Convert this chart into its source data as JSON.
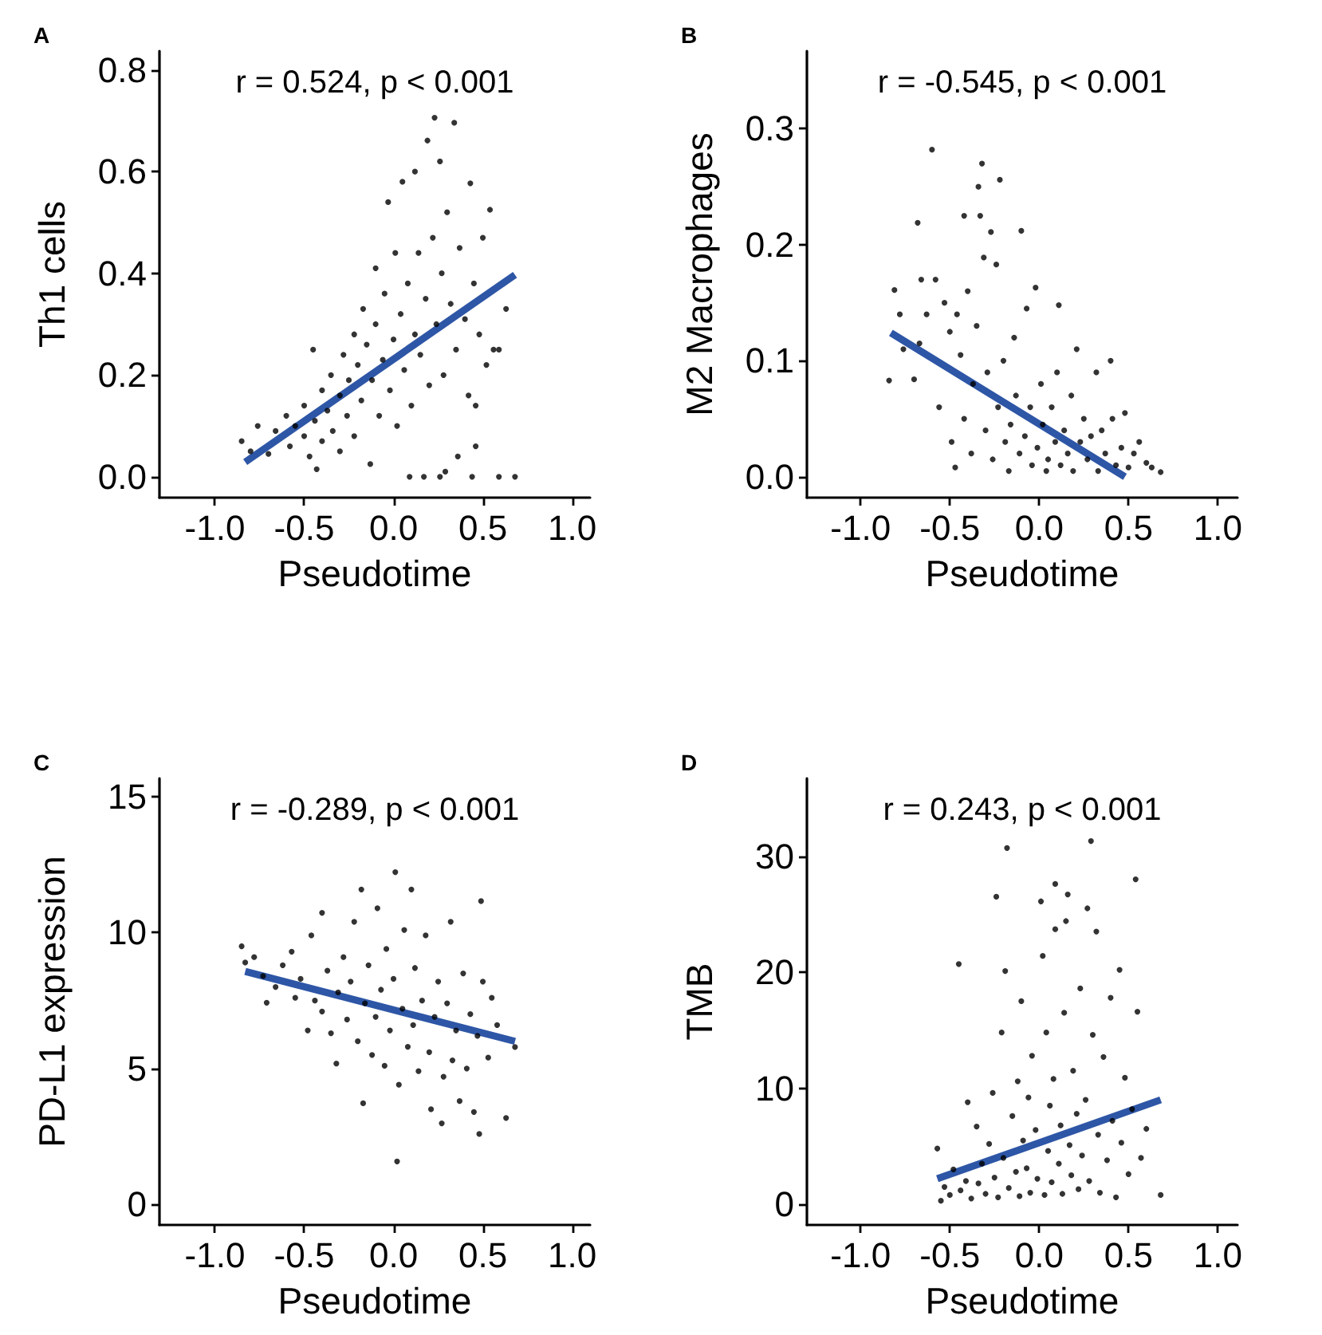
{
  "chart_data": [
    {
      "type": "scatter",
      "title": "A",
      "xlabel": "Pseudotime",
      "ylabel": "Th1 cells",
      "annotations": [
        "r = 0.524, p < 0.001"
      ],
      "xlim": [
        -1.31,
        1.1
      ],
      "ylim": [
        -0.041,
        0.837
      ],
      "xticks": [
        {
          "value": -1,
          "label": "-1.0"
        },
        {
          "value": -0.5,
          "label": "-0.5"
        },
        {
          "value": 0,
          "label": "0.0"
        },
        {
          "value": 0.5,
          "label": "0.5"
        },
        {
          "value": 1,
          "label": "1.0"
        }
      ],
      "yticks": [
        {
          "value": 0,
          "label": "0.0"
        },
        {
          "value": 0.2,
          "label": "0.2"
        },
        {
          "value": 0.4,
          "label": "0.4"
        },
        {
          "value": 0.6,
          "label": "0.6"
        },
        {
          "value": 0.8,
          "label": "0.8"
        }
      ],
      "series": [
        {
          "marker": "circle",
          "color": "#000000",
          "x": [
            -0.85,
            -0.8,
            -0.76,
            -0.7,
            -0.66,
            -0.6,
            -0.58,
            -0.55,
            -0.5,
            -0.5,
            -0.47,
            -0.45,
            -0.44,
            -0.43,
            -0.4,
            -0.4,
            -0.37,
            -0.35,
            -0.34,
            -0.3,
            -0.3,
            -0.28,
            -0.26,
            -0.25,
            -0.22,
            -0.22,
            -0.2,
            -0.18,
            -0.17,
            -0.15,
            -0.13,
            -0.12,
            -0.1,
            -0.1,
            -0.08,
            -0.06,
            -0.05,
            -0.03,
            -0.02,
            0,
            0.01,
            0.02,
            0.04,
            0.05,
            0.06,
            0.08,
            0.09,
            0.1,
            0.12,
            0.12,
            0.14,
            0.15,
            0.17,
            0.18,
            0.19,
            0.2,
            0.22,
            0.23,
            0.24,
            0.26,
            0.26,
            0.27,
            0.28,
            0.29,
            0.3,
            0.32,
            0.34,
            0.35,
            0.36,
            0.37,
            0.4,
            0.42,
            0.43,
            0.44,
            0.45,
            0.46,
            0.46,
            0.48,
            0.5,
            0.52,
            0.54,
            0.56,
            0.59,
            0.59,
            0.63,
            0.68
          ],
          "values": [
            0.07,
            0.05,
            0.1,
            0.045,
            0.09,
            0.12,
            0.06,
            0.1,
            0.08,
            0.14,
            0.04,
            0.25,
            0.11,
            0.015,
            0.17,
            0.07,
            0.13,
            0.2,
            0.09,
            0.16,
            0.05,
            0.24,
            0.12,
            0.19,
            0.28,
            0.08,
            0.22,
            0.15,
            0.33,
            0.26,
            0.025,
            0.19,
            0.3,
            0.41,
            0.12,
            0.23,
            0.36,
            0.54,
            0.17,
            0.27,
            0.44,
            0.1,
            0.32,
            0.58,
            0.21,
            0.38,
            0,
            0.14,
            0.6,
            0.28,
            0.44,
            0.24,
            0,
            0.35,
            0.661,
            0.18,
            0.47,
            0.706,
            0.3,
            0.62,
            0,
            0.4,
            0.2,
            0.01,
            0.52,
            0.34,
            0.696,
            0.25,
            0.04,
            0.45,
            0.31,
            0.16,
            0.577,
            0,
            0.38,
            0.06,
            0.14,
            0.28,
            0.47,
            0.22,
            0.525,
            0.25,
            0,
            0.25,
            0.33,
            0
          ]
        },
        {
          "type": "line",
          "color": "#2e56a6",
          "x": [
            -0.83,
            0.68
          ],
          "values": [
            0.029,
            0.397
          ]
        }
      ]
    },
    {
      "type": "scatter",
      "title": "B",
      "xlabel": "Pseudotime",
      "ylabel": "M2 Macrophages",
      "annotations": [
        "r = -0.545, p < 0.001"
      ],
      "xlim": [
        -1.3,
        1.11
      ],
      "ylim": [
        -0.018,
        0.367
      ],
      "xticks": [
        {
          "value": -1,
          "label": "-1.0"
        },
        {
          "value": -0.5,
          "label": "-0.5"
        },
        {
          "value": 0,
          "label": "0.0"
        },
        {
          "value": 0.5,
          "label": "0.5"
        },
        {
          "value": 1,
          "label": "1.0"
        }
      ],
      "yticks": [
        {
          "value": 0,
          "label": "0.0"
        },
        {
          "value": 0.1,
          "label": "0.1"
        },
        {
          "value": 0.2,
          "label": "0.2"
        },
        {
          "value": 0.3,
          "label": "0.3"
        }
      ],
      "series": [
        {
          "marker": "circle",
          "color": "#000000",
          "x": [
            -0.84,
            -0.81,
            -0.78,
            -0.76,
            -0.7,
            -0.68,
            -0.67,
            -0.66,
            -0.63,
            -0.6,
            -0.58,
            -0.56,
            -0.53,
            -0.5,
            -0.49,
            -0.47,
            -0.46,
            -0.44,
            -0.42,
            -0.42,
            -0.4,
            -0.38,
            -0.37,
            -0.35,
            -0.34,
            -0.33,
            -0.32,
            -0.31,
            -0.3,
            -0.29,
            -0.27,
            -0.26,
            -0.24,
            -0.23,
            -0.22,
            -0.2,
            -0.19,
            -0.17,
            -0.16,
            -0.14,
            -0.13,
            -0.11,
            -0.1,
            -0.08,
            -0.07,
            -0.05,
            -0.04,
            -0.02,
            -0.01,
            0.01,
            0.02,
            0.04,
            0.05,
            0.07,
            0.09,
            0.1,
            0.11,
            0.12,
            0.14,
            0.16,
            0.18,
            0.19,
            0.21,
            0.23,
            0.25,
            0.27,
            0.29,
            0.32,
            0.33,
            0.35,
            0.37,
            0.4,
            0.41,
            0.43,
            0.46,
            0.48,
            0.5,
            0.53,
            0.56,
            0.6,
            0.63,
            0.68
          ],
          "values": [
            0.083,
            0.161,
            0.14,
            0.11,
            0.084,
            0.219,
            0.115,
            0.17,
            0.14,
            0.282,
            0.17,
            0.06,
            0.15,
            0.125,
            0.03,
            0.008,
            0.14,
            0.105,
            0.225,
            0.05,
            0.16,
            0.02,
            0.08,
            0.13,
            0.25,
            0.225,
            0.27,
            0.189,
            0.04,
            0.09,
            0.211,
            0.015,
            0.183,
            0.06,
            0.256,
            0.1,
            0.03,
            0.005,
            0.045,
            0.12,
            0.07,
            0.02,
            0.212,
            0.035,
            0.145,
            0.06,
            0.01,
            0.163,
            0.025,
            0.08,
            0.045,
            0.005,
            0.015,
            0.06,
            0.03,
            0.09,
            0.148,
            0.01,
            0.04,
            0.02,
            0.07,
            0.005,
            0.11,
            0.03,
            0.05,
            0.015,
            0.035,
            0.09,
            0.005,
            0.04,
            0.02,
            0.1,
            0.05,
            0.01,
            0.025,
            0.055,
            0.008,
            0.02,
            0.03,
            0.012,
            0.008,
            0.004
          ]
        },
        {
          "type": "line",
          "color": "#2e56a6",
          "x": [
            -0.83,
            0.48
          ],
          "values": [
            0.124,
            0
          ]
        }
      ]
    },
    {
      "type": "scatter",
      "title": "C",
      "xlabel": "Pseudotime",
      "ylabel": "PD-L1 expression",
      "annotations": [
        "r = -0.289, p < 0.001"
      ],
      "xlim": [
        -1.31,
        1.1
      ],
      "ylim": [
        -0.76,
        15.68
      ],
      "xticks": [
        {
          "value": -1,
          "label": "-1.0"
        },
        {
          "value": -0.5,
          "label": "-0.5"
        },
        {
          "value": 0,
          "label": "0.0"
        },
        {
          "value": 0.5,
          "label": "0.5"
        },
        {
          "value": 1,
          "label": "1.0"
        }
      ],
      "yticks": [
        0,
        5,
        10,
        15
      ],
      "series": [
        {
          "marker": "circle",
          "color": "#000000",
          "x": [
            -0.85,
            -0.83,
            -0.78,
            -0.73,
            -0.71,
            -0.66,
            -0.62,
            -0.57,
            -0.55,
            -0.52,
            -0.48,
            -0.46,
            -0.44,
            -0.4,
            -0.4,
            -0.37,
            -0.35,
            -0.32,
            -0.31,
            -0.28,
            -0.26,
            -0.24,
            -0.22,
            -0.2,
            -0.18,
            -0.17,
            -0.16,
            -0.14,
            -0.12,
            -0.1,
            -0.09,
            -0.07,
            -0.05,
            -0.04,
            -0.02,
            0,
            0.01,
            0.02,
            0.03,
            0.05,
            0.06,
            0.08,
            0.1,
            0.11,
            0.12,
            0.14,
            0.16,
            0.18,
            0.2,
            0.21,
            0.23,
            0.25,
            0.27,
            0.28,
            0.3,
            0.32,
            0.33,
            0.35,
            0.37,
            0.39,
            0.41,
            0.43,
            0.45,
            0.47,
            0.48,
            0.49,
            0.5,
            0.53,
            0.55,
            0.58,
            0.63,
            0.68
          ],
          "values": [
            9.5,
            8.9,
            9.1,
            8.4,
            7.42,
            8,
            8.8,
            9.3,
            7.6,
            8.3,
            6.4,
            9.9,
            7.5,
            10.73,
            7.1,
            8.6,
            6.3,
            5.18,
            7.8,
            9.1,
            6.8,
            8.2,
            10.4,
            6,
            11.59,
            3.72,
            7.4,
            8.8,
            5.5,
            6.9,
            10.9,
            7.9,
            5.1,
            9.4,
            6.4,
            8.3,
            12.23,
            1.58,
            4.4,
            7.2,
            10.1,
            5.8,
            11.59,
            6.6,
            8.7,
            4.9,
            7.5,
            9.9,
            5.6,
            3.5,
            6.9,
            8.2,
            2.98,
            4.7,
            7.4,
            10.4,
            5.3,
            6.4,
            3.8,
            8.5,
            5,
            7,
            3.4,
            6.2,
            2.59,
            11.16,
            8.2,
            5.4,
            7.6,
            6.6,
            3.18,
            5.79
          ]
        },
        {
          "type": "line",
          "color": "#2e56a6",
          "x": [
            -0.83,
            0.68
          ],
          "values": [
            8.57,
            6.0
          ]
        }
      ]
    },
    {
      "type": "scatter",
      "title": "D",
      "xlabel": "Pseudotime",
      "ylabel": "TMB",
      "annotations": [
        "r = 0.243, p < 0.001"
      ],
      "xlim": [
        -1.3,
        1.11
      ],
      "ylim": [
        -1.78,
        36.7
      ],
      "xticks": [
        {
          "value": -1,
          "label": "-1.0"
        },
        {
          "value": -0.5,
          "label": "-0.5"
        },
        {
          "value": 0,
          "label": "0.0"
        },
        {
          "value": 0.5,
          "label": "0.5"
        },
        {
          "value": 1,
          "label": "1.0"
        }
      ],
      "yticks": [
        0,
        10,
        20,
        30
      ],
      "series": [
        {
          "marker": "circle",
          "color": "#000000",
          "x": [
            -0.57,
            -0.55,
            -0.53,
            -0.5,
            -0.48,
            -0.45,
            -0.44,
            -0.41,
            -0.4,
            -0.38,
            -0.35,
            -0.34,
            -0.32,
            -0.3,
            -0.28,
            -0.26,
            -0.25,
            -0.24,
            -0.23,
            -0.21,
            -0.2,
            -0.19,
            -0.18,
            -0.17,
            -0.15,
            -0.13,
            -0.12,
            -0.11,
            -0.1,
            -0.09,
            -0.07,
            -0.06,
            -0.05,
            -0.04,
            -0.02,
            -0.01,
            0.01,
            0.02,
            0.03,
            0.04,
            0.05,
            0.06,
            0.07,
            0.08,
            0.09,
            0.09,
            0.11,
            0.12,
            0.13,
            0.14,
            0.15,
            0.16,
            0.17,
            0.18,
            0.19,
            0.21,
            0.22,
            0.23,
            0.24,
            0.26,
            0.27,
            0.28,
            0.29,
            0.3,
            0.32,
            0.33,
            0.34,
            0.36,
            0.38,
            0.4,
            0.41,
            0.43,
            0.45,
            0.46,
            0.48,
            0.5,
            0.52,
            0.54,
            0.55,
            0.57,
            0.6,
            0.68
          ],
          "values": [
            4.8,
            0.3,
            1.5,
            0.8,
            3,
            20.7,
            1.2,
            2,
            8.8,
            0.5,
            6.7,
            1.8,
            3.5,
            0.9,
            5.2,
            9.6,
            2.3,
            26.5,
            0.6,
            14.8,
            4,
            20.1,
            30.7,
            1.4,
            7.6,
            2.8,
            10.6,
            0.7,
            17.5,
            5.5,
            3.1,
            9.2,
            1,
            12.8,
            6.4,
            2.2,
            26.1,
            21.4,
            0.8,
            14.8,
            4.6,
            8.5,
            1.9,
            10.8,
            27.6,
            23.7,
            3.5,
            6.8,
            0.9,
            16.5,
            24.4,
            26.7,
            5.1,
            2.5,
            11.5,
            7.8,
            1.3,
            18.6,
            4.2,
            9,
            25.5,
            2,
            31.3,
            14.6,
            23.5,
            6,
            1,
            12.7,
            3.8,
            17.8,
            7.2,
            0.6,
            20.2,
            5.3,
            10.9,
            2.6,
            8.2,
            28,
            16.6,
            4,
            6.5,
            0.8
          ]
        },
        {
          "type": "line",
          "color": "#2e56a6",
          "x": [
            -0.57,
            0.68
          ],
          "values": [
            2.2,
            9.0
          ]
        }
      ]
    }
  ]
}
